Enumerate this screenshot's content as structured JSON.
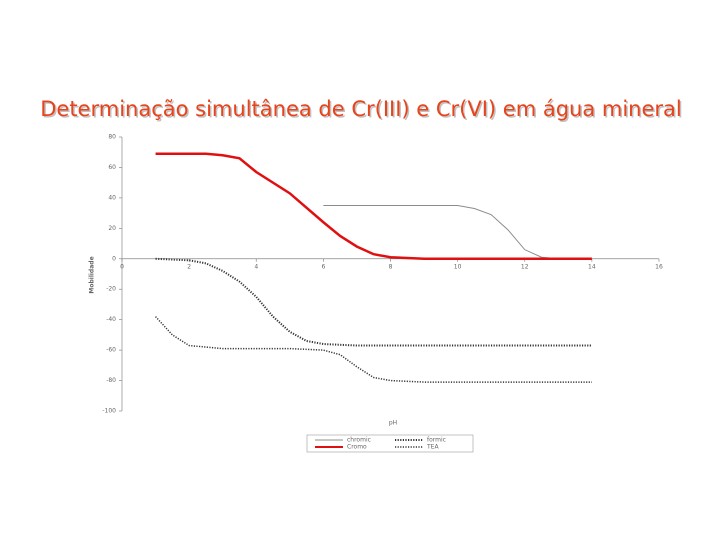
{
  "chart_data": {
    "type": "line",
    "title": "Determinação simultânea de Cr(III) e Cr(VI) em água mineral",
    "x_label": "pH",
    "y_label": "Mobilidade",
    "xlim": [
      0,
      16
    ],
    "xticks": [
      0,
      2,
      4,
      6,
      8,
      10,
      12,
      14,
      16
    ],
    "ylim": [
      -100,
      80
    ],
    "yticks": [
      80,
      60,
      40,
      20,
      0,
      -20,
      -40,
      -60,
      -80,
      -100
    ],
    "series": [
      {
        "name": "chromic",
        "color": "#8c8c8c",
        "style": "solid",
        "width": 1,
        "x": [
          6,
          8,
          10,
          10.5,
          11,
          11.5,
          12,
          12.5,
          13,
          14
        ],
        "values": [
          35,
          35,
          35,
          33,
          29,
          19,
          6,
          1,
          0,
          0
        ]
      },
      {
        "name": "formic",
        "color": "#333333",
        "style": "dotted",
        "width": 2,
        "x": [
          1,
          2,
          2.5,
          3,
          3.5,
          4,
          4.5,
          5,
          5.5,
          6,
          7,
          8,
          10,
          14
        ],
        "values": [
          0,
          -1,
          -3,
          -8,
          -15,
          -25,
          -38,
          -48,
          -54,
          -56,
          -57,
          -57,
          -57,
          -57
        ]
      },
      {
        "name": "Cromo",
        "color": "#e01010",
        "style": "solid",
        "width": 2.5,
        "x": [
          1,
          2.5,
          3,
          3.5,
          4,
          5,
          6,
          6.5,
          7,
          7.5,
          8,
          9,
          14
        ],
        "values": [
          69,
          69,
          68,
          66,
          57,
          43,
          24,
          15,
          8,
          3,
          1,
          0,
          0
        ]
      },
      {
        "name": "TEA",
        "color": "#333333",
        "style": "dotted",
        "width": 1.5,
        "x": [
          1,
          1.5,
          2,
          3,
          5,
          6,
          6.5,
          7,
          7.5,
          8,
          9,
          14
        ],
        "values": [
          -38,
          -50,
          -57,
          -59,
          -59,
          -60,
          -63,
          -71,
          -78,
          -80,
          -81,
          -81
        ]
      }
    ]
  }
}
